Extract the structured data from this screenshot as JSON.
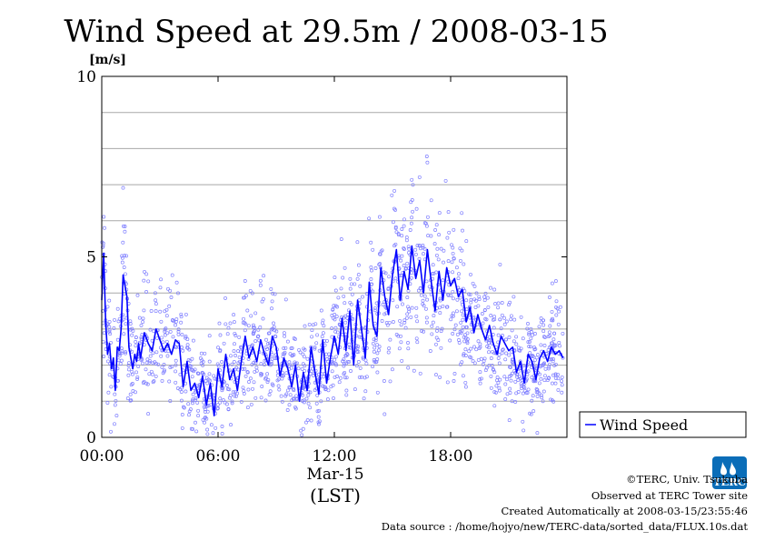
{
  "chart_data": {
    "type": "line",
    "title": "Wind Speed at 29.5m / 2008-03-15",
    "ylabel": "[m/s]",
    "xlabel": "(LST)",
    "x_date_label": "Mar-15",
    "xlim": [
      0,
      24
    ],
    "ylim": [
      0,
      10
    ],
    "y_ticks": [
      0,
      5,
      10
    ],
    "y_tick_labels": [
      "0",
      "5",
      "10"
    ],
    "y_gridlines": [
      1,
      2,
      3,
      4,
      6,
      7,
      8,
      9
    ],
    "x_ticks": [
      0,
      6,
      12,
      18
    ],
    "x_tick_labels": [
      "00:00",
      "06:00",
      "12:00",
      "18:00"
    ],
    "grid": true,
    "legend_position": "right",
    "series": [
      {
        "name": "Wind Speed",
        "color": "#0000ff",
        "scatter_color": "#8080ff",
        "x": [
          0.0,
          0.1,
          0.2,
          0.3,
          0.4,
          0.5,
          0.6,
          0.7,
          0.8,
          0.9,
          1.0,
          1.1,
          1.2,
          1.3,
          1.4,
          1.5,
          1.6,
          1.7,
          1.8,
          1.9,
          2.0,
          2.2,
          2.4,
          2.6,
          2.8,
          3.0,
          3.2,
          3.4,
          3.6,
          3.8,
          4.0,
          4.2,
          4.4,
          4.6,
          4.8,
          5.0,
          5.2,
          5.4,
          5.6,
          5.8,
          6.0,
          6.2,
          6.4,
          6.6,
          6.8,
          7.0,
          7.2,
          7.4,
          7.6,
          7.8,
          8.0,
          8.2,
          8.4,
          8.6,
          8.8,
          9.0,
          9.2,
          9.4,
          9.6,
          9.8,
          10.0,
          10.2,
          10.4,
          10.6,
          10.8,
          11.0,
          11.2,
          11.4,
          11.6,
          11.8,
          12.0,
          12.2,
          12.4,
          12.6,
          12.8,
          13.0,
          13.2,
          13.4,
          13.6,
          13.8,
          14.0,
          14.2,
          14.4,
          14.6,
          14.8,
          15.0,
          15.2,
          15.4,
          15.6,
          15.8,
          16.0,
          16.2,
          16.4,
          16.6,
          16.8,
          17.0,
          17.2,
          17.4,
          17.6,
          17.8,
          18.0,
          18.2,
          18.4,
          18.6,
          18.8,
          19.0,
          19.2,
          19.4,
          19.6,
          19.8,
          20.0,
          20.2,
          20.4,
          20.6,
          20.8,
          21.0,
          21.2,
          21.4,
          21.6,
          21.8,
          22.0,
          22.2,
          22.4,
          22.6,
          22.8,
          23.0,
          23.2,
          23.4,
          23.6,
          23.8
        ],
        "values": [
          3.8,
          5.1,
          3.2,
          2.3,
          2.6,
          1.9,
          2.2,
          1.3,
          2.5,
          2.4,
          3.0,
          4.5,
          4.2,
          3.9,
          2.5,
          2.2,
          1.9,
          2.3,
          2.1,
          2.6,
          2.2,
          2.9,
          2.6,
          2.4,
          3.0,
          2.7,
          2.4,
          2.6,
          2.3,
          2.7,
          2.6,
          1.4,
          2.1,
          1.3,
          1.5,
          1.1,
          1.7,
          0.9,
          1.5,
          0.6,
          1.9,
          1.4,
          2.3,
          1.6,
          1.9,
          1.3,
          2.1,
          2.8,
          2.2,
          2.5,
          2.1,
          2.7,
          2.3,
          2.0,
          2.8,
          2.5,
          1.7,
          2.2,
          1.9,
          1.4,
          2.0,
          1.0,
          1.8,
          1.3,
          2.5,
          1.8,
          1.2,
          2.7,
          1.5,
          2.2,
          2.8,
          2.3,
          3.3,
          2.4,
          3.5,
          2.0,
          3.8,
          3.0,
          2.2,
          4.3,
          3.1,
          2.8,
          4.7,
          3.9,
          3.4,
          4.5,
          5.2,
          3.8,
          4.6,
          4.1,
          5.3,
          4.4,
          4.9,
          4.0,
          5.2,
          4.3,
          3.5,
          4.6,
          3.8,
          4.7,
          4.2,
          4.4,
          3.9,
          4.1,
          3.2,
          3.6,
          2.9,
          3.4,
          3.0,
          2.7,
          3.1,
          2.6,
          2.3,
          2.8,
          2.6,
          2.4,
          2.5,
          1.8,
          2.1,
          1.5,
          2.3,
          2.1,
          1.6,
          2.2,
          2.4,
          2.1,
          2.5,
          2.3,
          2.4,
          2.2
        ]
      }
    ]
  },
  "credits": {
    "copyright": "©TERC, Univ. Tsukuba",
    "observed": "Observed at TERC Tower site",
    "created": "Created Automatically at 2008-03-15/23:55:46",
    "source": "Data source : /home/hojyo/new/TERC-data/sorted_data/FLUX.10s.dat"
  },
  "logo": {
    "text": "TERC",
    "color": "#0a6db8"
  }
}
